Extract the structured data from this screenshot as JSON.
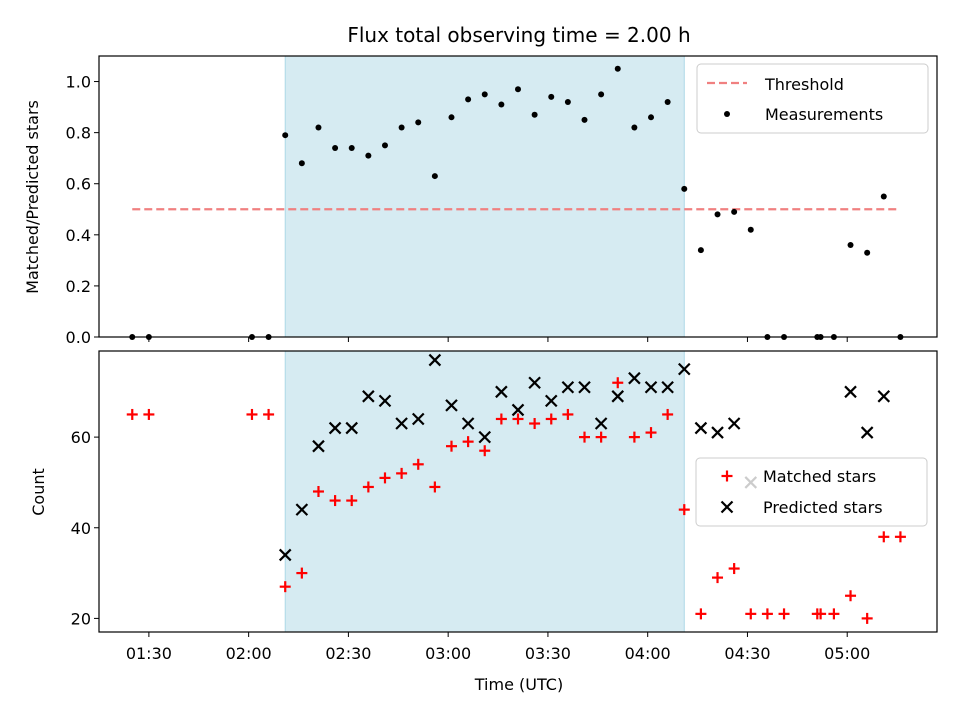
{
  "chart_data": [
    {
      "type": "scatter",
      "title": "Flux total observing time = 2.00 h",
      "xlabel": "",
      "ylabel": "Matched/Predicted stars",
      "ylim": [
        0,
        1.1
      ],
      "yticks": [
        "0.0",
        "0.2",
        "0.4",
        "0.6",
        "0.8",
        "1.0"
      ],
      "shaded_span": {
        "start": "02:11",
        "end": "04:11",
        "color": "#add8e6"
      },
      "threshold": {
        "name": "Threshold",
        "value": 0.5,
        "start": "01:25",
        "end": "05:15",
        "color": "#f08080",
        "style": "dashed"
      },
      "series": [
        {
          "name": "Measurements",
          "color": "#000000",
          "marker": "dot",
          "points": [
            [
              "01:25",
              0.0
            ],
            [
              "01:30",
              0.0
            ],
            [
              "02:01",
              0.0
            ],
            [
              "02:06",
              0.0
            ],
            [
              "02:11",
              0.79
            ],
            [
              "02:16",
              0.68
            ],
            [
              "02:21",
              0.82
            ],
            [
              "02:26",
              0.74
            ],
            [
              "02:31",
              0.74
            ],
            [
              "02:36",
              0.71
            ],
            [
              "02:41",
              0.75
            ],
            [
              "02:46",
              0.82
            ],
            [
              "02:51",
              0.84
            ],
            [
              "02:56",
              0.63
            ],
            [
              "03:01",
              0.86
            ],
            [
              "03:06",
              0.93
            ],
            [
              "03:11",
              0.95
            ],
            [
              "03:16",
              0.91
            ],
            [
              "03:21",
              0.97
            ],
            [
              "03:26",
              0.87
            ],
            [
              "03:31",
              0.94
            ],
            [
              "03:36",
              0.92
            ],
            [
              "03:41",
              0.85
            ],
            [
              "03:46",
              0.95
            ],
            [
              "03:51",
              1.05
            ],
            [
              "03:56",
              0.82
            ],
            [
              "04:01",
              0.86
            ],
            [
              "04:06",
              0.92
            ],
            [
              "04:11",
              0.58
            ],
            [
              "04:16",
              0.34
            ],
            [
              "04:21",
              0.48
            ],
            [
              "04:26",
              0.49
            ],
            [
              "04:31",
              0.42
            ],
            [
              "04:36",
              0.0
            ],
            [
              "04:41",
              0.0
            ],
            [
              "04:51",
              0.0
            ],
            [
              "04:52",
              0.0
            ],
            [
              "04:56",
              0.0
            ],
            [
              "05:01",
              0.36
            ],
            [
              "05:06",
              0.33
            ],
            [
              "05:11",
              0.55
            ],
            [
              "05:16",
              0.0
            ]
          ]
        }
      ],
      "legend": {
        "position": "top-right",
        "entries": [
          "Threshold",
          "Measurements"
        ]
      }
    },
    {
      "type": "scatter",
      "title": "",
      "xlabel": "Time (UTC)",
      "ylabel": "Count",
      "ylim": [
        17,
        79
      ],
      "yticks": [
        "20",
        "40",
        "60"
      ],
      "xticks": [
        "01:30",
        "02:00",
        "02:30",
        "03:00",
        "03:30",
        "04:00",
        "04:30",
        "05:00"
      ],
      "xlim": [
        "01:15",
        "05:27"
      ],
      "shaded_span": {
        "start": "02:11",
        "end": "04:11",
        "color": "#add8e6"
      },
      "series": [
        {
          "name": "Matched stars",
          "color": "#ff0000",
          "marker": "plus",
          "points": [
            [
              "01:25",
              65
            ],
            [
              "01:30",
              65
            ],
            [
              "02:01",
              65
            ],
            [
              "02:06",
              65
            ],
            [
              "02:11",
              27
            ],
            [
              "02:16",
              30
            ],
            [
              "02:21",
              48
            ],
            [
              "02:26",
              46
            ],
            [
              "02:31",
              46
            ],
            [
              "02:36",
              49
            ],
            [
              "02:41",
              51
            ],
            [
              "02:46",
              52
            ],
            [
              "02:51",
              54
            ],
            [
              "02:56",
              49
            ],
            [
              "03:01",
              58
            ],
            [
              "03:06",
              59
            ],
            [
              "03:11",
              57
            ],
            [
              "03:16",
              64
            ],
            [
              "03:21",
              64
            ],
            [
              "03:26",
              63
            ],
            [
              "03:31",
              64
            ],
            [
              "03:36",
              65
            ],
            [
              "03:41",
              60
            ],
            [
              "03:46",
              60
            ],
            [
              "03:51",
              72
            ],
            [
              "03:56",
              60
            ],
            [
              "04:01",
              61
            ],
            [
              "04:06",
              65
            ],
            [
              "04:11",
              44
            ],
            [
              "04:16",
              21
            ],
            [
              "04:21",
              29
            ],
            [
              "04:26",
              31
            ],
            [
              "04:31",
              21
            ],
            [
              "04:36",
              21
            ],
            [
              "04:41",
              21
            ],
            [
              "04:51",
              21
            ],
            [
              "04:52",
              21
            ],
            [
              "04:56",
              21
            ],
            [
              "05:01",
              25
            ],
            [
              "05:06",
              20
            ],
            [
              "05:11",
              38
            ],
            [
              "05:16",
              38
            ]
          ]
        },
        {
          "name": "Predicted stars",
          "color": "#000000",
          "marker": "x",
          "points": [
            [
              "02:11",
              34
            ],
            [
              "02:16",
              44
            ],
            [
              "02:21",
              58
            ],
            [
              "02:26",
              62
            ],
            [
              "02:31",
              62
            ],
            [
              "02:36",
              69
            ],
            [
              "02:41",
              68
            ],
            [
              "02:46",
              63
            ],
            [
              "02:51",
              64
            ],
            [
              "02:56",
              77
            ],
            [
              "03:01",
              67
            ],
            [
              "03:06",
              63
            ],
            [
              "03:11",
              60
            ],
            [
              "03:16",
              70
            ],
            [
              "03:21",
              66
            ],
            [
              "03:26",
              72
            ],
            [
              "03:31",
              68
            ],
            [
              "03:36",
              71
            ],
            [
              "03:41",
              71
            ],
            [
              "03:46",
              63
            ],
            [
              "03:51",
              69
            ],
            [
              "03:56",
              73
            ],
            [
              "04:01",
              71
            ],
            [
              "04:06",
              71
            ],
            [
              "04:11",
              75
            ],
            [
              "04:16",
              62
            ],
            [
              "04:21",
              61
            ],
            [
              "04:26",
              63
            ],
            [
              "04:31",
              50
            ],
            [
              "05:01",
              70
            ],
            [
              "05:06",
              61
            ],
            [
              "05:11",
              69
            ]
          ]
        }
      ],
      "legend": {
        "position": "center-right",
        "entries": [
          "Matched stars",
          "Predicted stars"
        ]
      }
    }
  ]
}
